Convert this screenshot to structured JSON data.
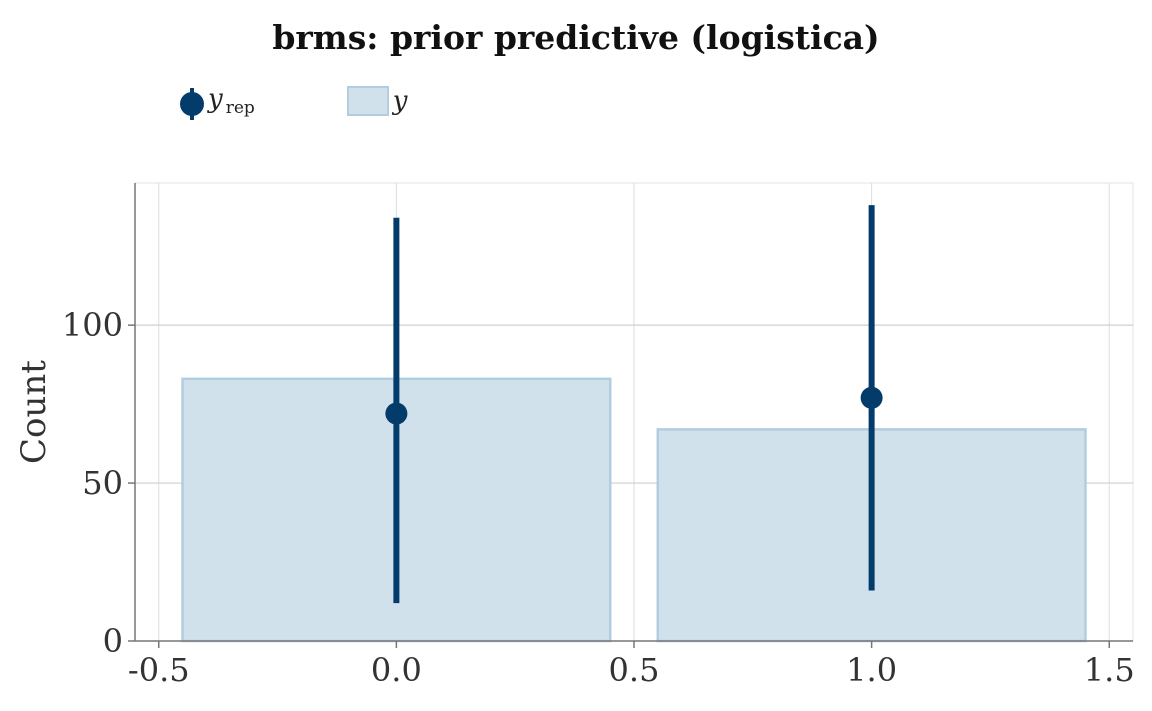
{
  "chart_data": {
    "type": "bar",
    "title": "brms: prior predictive (logistica)",
    "xlabel": "",
    "ylabel": "Count",
    "xlim": [
      -0.55,
      1.55
    ],
    "ylim": [
      0,
      145
    ],
    "xticks": [
      -0.5,
      0.0,
      0.5,
      1.0,
      1.5
    ],
    "xtick_labels": [
      "-0.5",
      "0.0",
      "0.5",
      "1.0",
      "1.5"
    ],
    "yticks": [
      0,
      50,
      100
    ],
    "ytick_labels": [
      "0",
      "50",
      "100"
    ],
    "grid": true,
    "legend": {
      "placement": "top-left",
      "items": [
        {
          "symbol": "point-interval",
          "label": "y",
          "subscript": "rep"
        },
        {
          "symbol": "box",
          "label": "y",
          "subscript": ""
        }
      ]
    },
    "observed_y": {
      "name": "y",
      "x": [
        0,
        1
      ],
      "values": [
        83,
        67
      ],
      "bar_width": 0.9,
      "color": "#d1e1ec",
      "edge_color": "#b3cde0"
    },
    "replicated_y": {
      "name": "y_rep",
      "x": [
        0,
        1
      ],
      "median": [
        72,
        77
      ],
      "lower": [
        12,
        16
      ],
      "upper": [
        134,
        138
      ],
      "color": "#033c6b"
    }
  }
}
